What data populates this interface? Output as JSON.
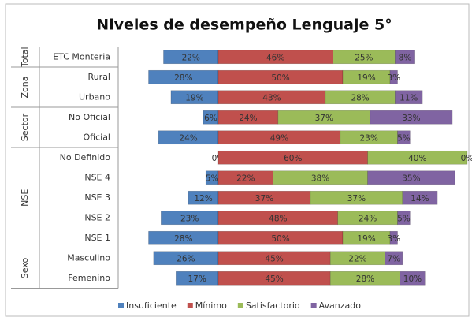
{
  "chart_data": {
    "type": "diverging-bar",
    "title": "Niveles de desempeño Lenguaje 5°",
    "groups": [
      {
        "name": "Total",
        "categories": [
          "ETC Monteria"
        ]
      },
      {
        "name": "Zona",
        "categories": [
          "Rural",
          "Urbano"
        ]
      },
      {
        "name": "Sector",
        "categories": [
          "No Oficial",
          "Oficial"
        ]
      },
      {
        "name": "NSE",
        "categories": [
          "No Definido",
          "NSE 4",
          "NSE 3",
          "NSE 2",
          "NSE 1"
        ]
      },
      {
        "name": "Sexo",
        "categories": [
          "Masculino",
          "Femenino"
        ]
      }
    ],
    "series": [
      {
        "name": "Insuficiente",
        "color": "#4f81bd",
        "values": [
          22,
          28,
          19,
          6,
          24,
          0,
          5,
          12,
          23,
          28,
          26,
          17
        ],
        "value_labels": [
          "22%",
          "28%",
          "19%",
          "6%",
          "24%",
          "0%",
          "5%",
          "12%",
          "23%",
          "28%",
          "26%",
          "17%"
        ]
      },
      {
        "name": "Mínimo",
        "color": "#c0504d",
        "values": [
          46,
          50,
          43,
          24,
          49,
          60,
          22,
          37,
          48,
          50,
          45,
          45
        ],
        "value_labels": [
          "46%",
          "50%",
          "43%",
          "24%",
          "49%",
          "60%",
          "22%",
          "37%",
          "48%",
          "50%",
          "45%",
          "45%"
        ]
      },
      {
        "name": "Satisfactorio",
        "color": "#9bbb59",
        "values": [
          25,
          19,
          28,
          37,
          23,
          40,
          38,
          37,
          24,
          19,
          22,
          28
        ],
        "value_labels": [
          "25%",
          "19%",
          "28%",
          "37%",
          "23%",
          "40%",
          "38%",
          "37%",
          "24%",
          "19%",
          "22%",
          "28%"
        ]
      },
      {
        "name": "Avanzado",
        "color": "#8064a2",
        "values": [
          8,
          3,
          11,
          33,
          5,
          0,
          35,
          14,
          5,
          3,
          7,
          10
        ],
        "value_labels": [
          "8%",
          "3%",
          "11%",
          "33%",
          "5%",
          "0%",
          "35%",
          "14%",
          "5%",
          "3%",
          "7%",
          "10%"
        ]
      }
    ]
  }
}
